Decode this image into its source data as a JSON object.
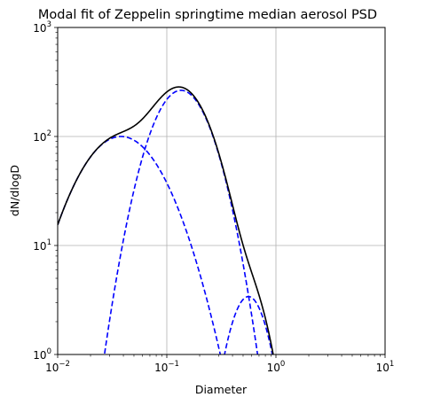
{
  "chart_data": {
    "type": "line",
    "title": "Modal fit of Zeppelin springtime median aerosol PSD",
    "xlabel": "Diameter",
    "ylabel": "dN/dlogD",
    "xscale": "log",
    "yscale": "log",
    "xlim": [
      0.01,
      10
    ],
    "ylim": [
      1,
      1000
    ],
    "grid": true,
    "x_ticks": [
      {
        "value": 0.01,
        "base": "10",
        "exp": "−2"
      },
      {
        "value": 0.1,
        "base": "10",
        "exp": "−1"
      },
      {
        "value": 1,
        "base": "10",
        "exp": "0"
      },
      {
        "value": 10,
        "base": "10",
        "exp": "1"
      }
    ],
    "y_ticks": [
      {
        "value": 1,
        "base": "10",
        "exp": "0"
      },
      {
        "value": 10,
        "base": "10",
        "exp": "1"
      },
      {
        "value": 100,
        "base": "10",
        "exp": "2"
      },
      {
        "value": 1000,
        "base": "10",
        "exp": "3"
      }
    ],
    "modes": [
      {
        "amplitude": 100,
        "median_diameter": 0.038,
        "log10_sigma": 0.3,
        "color": "#0000ff",
        "style": "dashed"
      },
      {
        "amplitude": 265,
        "median_diameter": 0.135,
        "log10_sigma": 0.21,
        "color": "#0000ff",
        "style": "dashed"
      },
      {
        "amplitude": 3.4,
        "median_diameter": 0.56,
        "log10_sigma": 0.14,
        "color": "#0000ff",
        "style": "dashed"
      }
    ],
    "total_curve": {
      "color": "#000000",
      "style": "solid",
      "description_of": "sum of modes"
    }
  }
}
